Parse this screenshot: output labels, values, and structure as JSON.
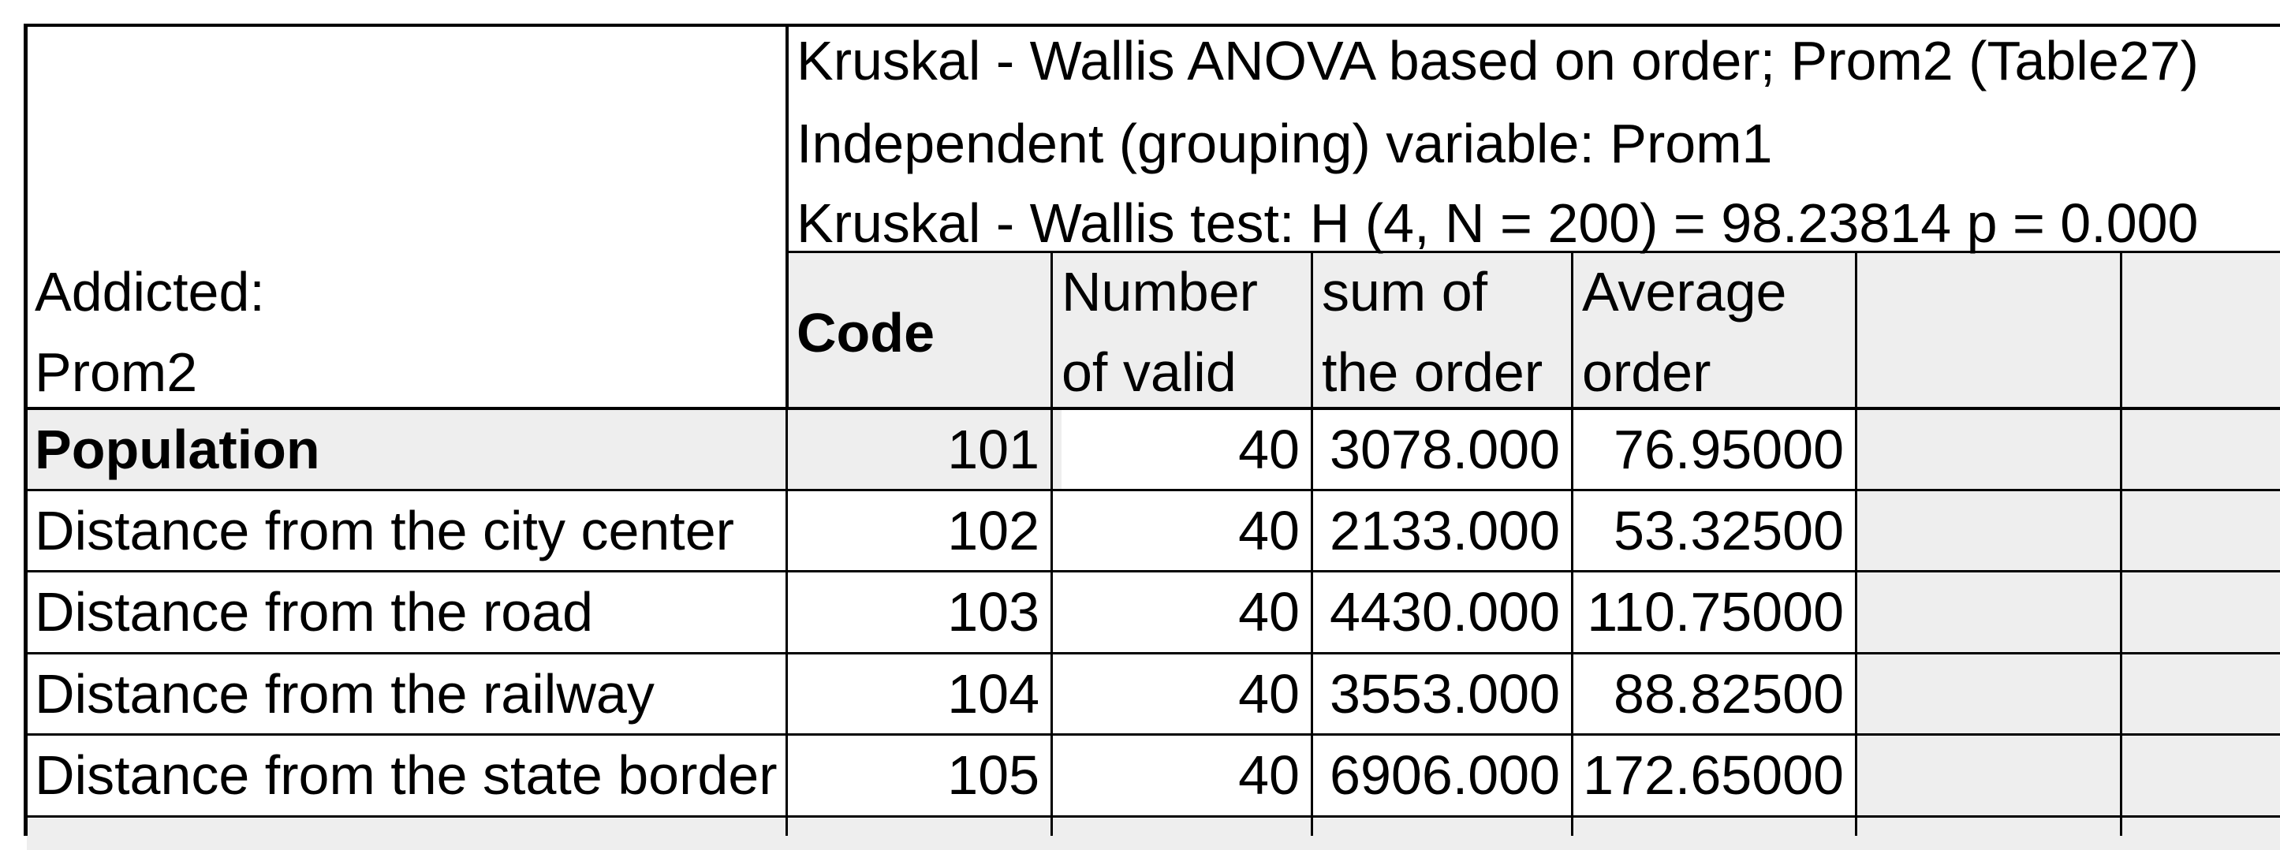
{
  "header": {
    "title_line1": "Kruskal - Wallis ANOVA based on order; Prom2 (Table27)",
    "title_line2": "Independent (grouping) variable: Prom1",
    "title_line3": "Kruskal - Wallis test: H (4, N = 200) = 98.23814 p = 0.000"
  },
  "row_header": {
    "line1": "Addicted:",
    "line2": "Prom2"
  },
  "columns": {
    "code": "Code",
    "valid_line1": "Number",
    "valid_line2": "of valid",
    "sum_line1": "sum of",
    "sum_line2": "the order",
    "avg_line1": "Average",
    "avg_line2": "order"
  },
  "rows": [
    {
      "name": "Population",
      "code": "101",
      "valid": "40",
      "sum": "3078.000",
      "avg": "76.95000"
    },
    {
      "name": "Distance from the city center",
      "code": "102",
      "valid": "40",
      "sum": "2133.000",
      "avg": "53.32500"
    },
    {
      "name": "Distance from the road",
      "code": "103",
      "valid": "40",
      "sum": "4430.000",
      "avg": "110.75000"
    },
    {
      "name": "Distance from the railway",
      "code": "104",
      "valid": "40",
      "sum": "3553.000",
      "avg": "88.82500"
    },
    {
      "name": "Distance from the state border",
      "code": "105",
      "valid": "40",
      "sum": "6906.000",
      "avg": "172.65000"
    }
  ]
}
